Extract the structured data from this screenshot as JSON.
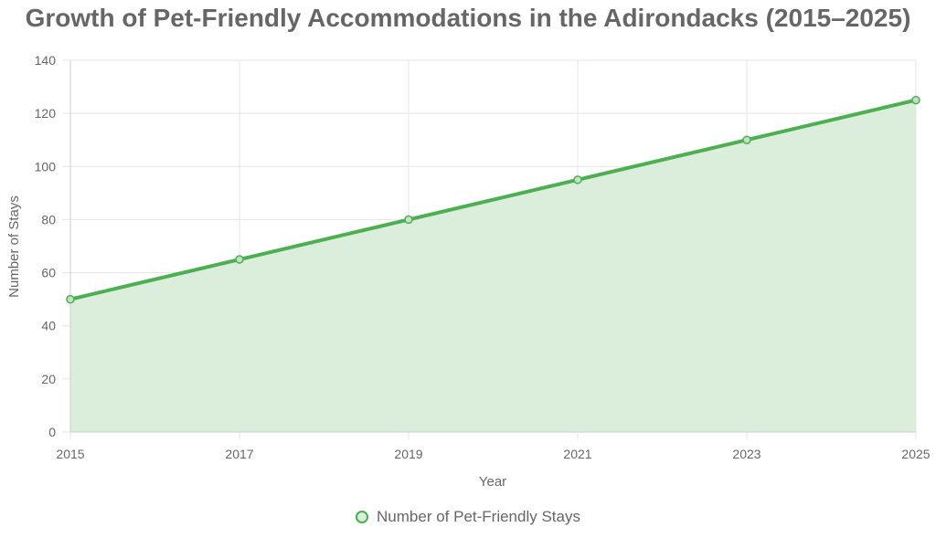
{
  "chart_data": {
    "type": "area",
    "title": "Growth of Pet-Friendly Accommodations in the Adirondacks (2015–2025)",
    "xlabel": "Year",
    "ylabel": "Number of Stays",
    "x": [
      2015,
      2017,
      2019,
      2021,
      2023,
      2025
    ],
    "x_tick_labels": [
      "2015",
      "2017",
      "2019",
      "2021",
      "2023",
      "2025"
    ],
    "y_tick_labels": [
      "0",
      "20",
      "40",
      "60",
      "80",
      "100",
      "120",
      "140"
    ],
    "ylim": [
      0,
      140
    ],
    "grid": true,
    "legend_position": "bottom",
    "series": [
      {
        "name": "Number of Pet-Friendly Stays",
        "values": [
          50,
          65,
          80,
          95,
          110,
          125
        ],
        "color": "#4caf50",
        "fill_color": "#dbeedb"
      }
    ]
  }
}
